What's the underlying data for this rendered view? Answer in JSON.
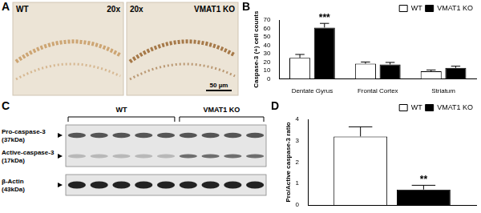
{
  "micrograph": {
    "title": "A",
    "images": [
      {
        "label": "WT",
        "magnification": "20x"
      },
      {
        "label": "VMAT1 KO",
        "magnification": "20x"
      }
    ],
    "scale_bar": "50 µm"
  },
  "chart_data": [
    {
      "type": "bar",
      "title": "B",
      "categories": [
        "Dentate Gyrus",
        "Frontal Cortex",
        "Striatum"
      ],
      "series": [
        {
          "name": "WT",
          "color": "#ffffff",
          "values": [
            25,
            18,
            9
          ],
          "errors": [
            4,
            2,
            1.5
          ]
        },
        {
          "name": "VMAT1 KO",
          "color": "#000000",
          "values": [
            61,
            17,
            13
          ],
          "errors": [
            5,
            2.5,
            2
          ]
        }
      ],
      "y_label": "Caspase-3 (+) cell counts",
      "ylim": [
        0,
        70
      ],
      "yticks": [
        0,
        10,
        20,
        30,
        40,
        50,
        60,
        70
      ],
      "grid": false,
      "legend": "upper right",
      "annotations": [
        {
          "text": "***",
          "series": "VMAT1 KO",
          "index": 0
        }
      ]
    },
    {
      "type": "bar",
      "title": "D",
      "categories": [
        null
      ],
      "series": [
        {
          "name": "WT",
          "color": "#ffffff",
          "values": [
            3.2
          ],
          "errors": [
            0.45
          ]
        },
        {
          "name": "VMAT1 KO",
          "color": "#000000",
          "values": [
            0.72
          ],
          "errors": [
            0.2
          ]
        }
      ],
      "y_label": "Pro/Active caspase-3 ratio",
      "ylim": [
        0,
        4
      ],
      "yticks": [
        0,
        1,
        2,
        3,
        4
      ],
      "grid": false,
      "legend": "upper right",
      "tick_labels": "y",
      "annotations": [
        {
          "text": "**",
          "series": "VMAT1 KO",
          "index": 0
        }
      ]
    }
  ],
  "blot": {
    "title": "C",
    "groups": [
      {
        "label": "WT",
        "lanes": 5
      },
      {
        "label": "VMAT1 KO",
        "lanes": 4
      }
    ],
    "bands": [
      {
        "name": "Pro-caspase-3",
        "size": "(37kDa)"
      },
      {
        "name": "Active-caspase-3",
        "size": "(17kDa)"
      },
      {
        "name": "β-Actin",
        "size": "(43kDa)"
      }
    ]
  }
}
